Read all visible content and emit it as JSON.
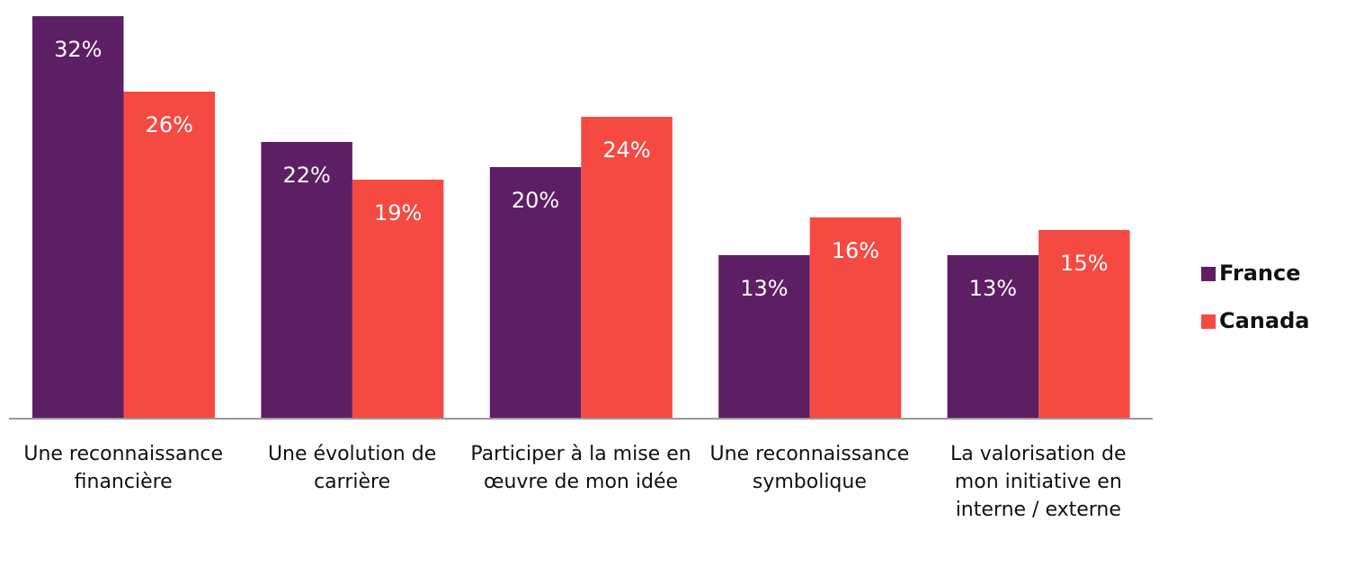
{
  "chart_data": {
    "type": "bar",
    "categories": [
      "Une reconnaissance financière",
      "Une évolution de carrière",
      "Participer à la mise en œuvre de mon idée",
      "Une reconnaissance symbolique",
      "La valorisation de mon initiative en interne / externe"
    ],
    "series": [
      {
        "name": "France",
        "color": "#5d1f64",
        "values": [
          32,
          22,
          20,
          13,
          13
        ],
        "value_labels": [
          "32%",
          "22%",
          "20%",
          "13%",
          "13%"
        ]
      },
      {
        "name": "Canada",
        "color": "#f54a42",
        "values": [
          26,
          19,
          24,
          16,
          15
        ],
        "value_labels": [
          "26%",
          "19%",
          "24%",
          "16%",
          "15%"
        ]
      }
    ],
    "ylim": [
      0,
      32.5
    ],
    "legend": "right"
  }
}
